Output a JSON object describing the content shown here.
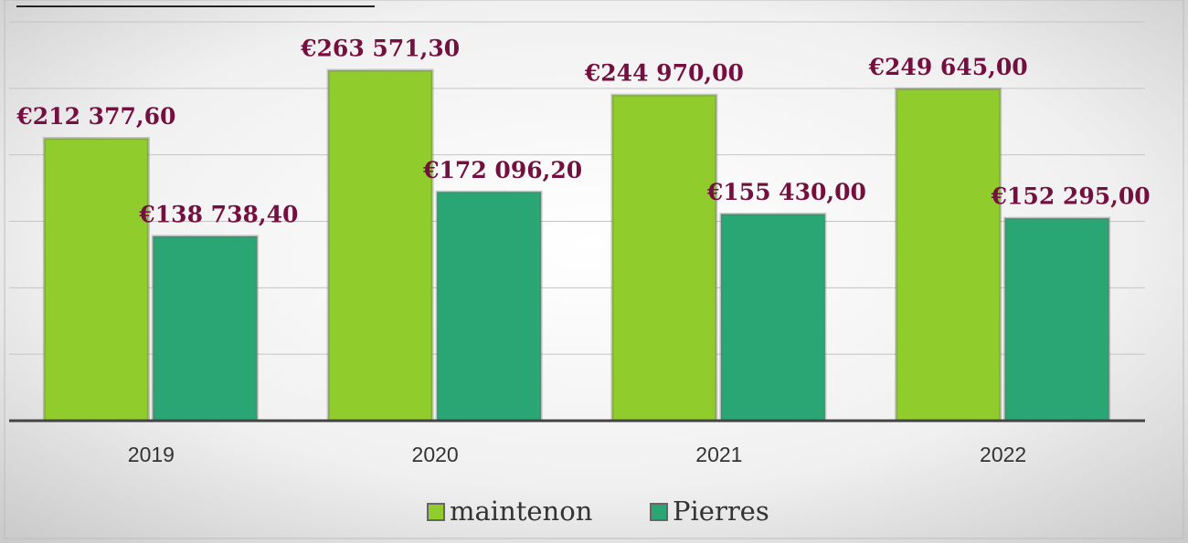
{
  "chart_data": {
    "type": "bar",
    "categories": [
      "2019",
      "2020",
      "2021",
      "2022"
    ],
    "series": [
      {
        "name": "maintenon",
        "color": "#8fcc2c",
        "values": [
          212377.6,
          263571.3,
          244970.0,
          249645.0
        ],
        "value_labels": [
          "€212 377,60",
          "€263 571,30",
          "€244 970,00",
          "€249 645,00"
        ]
      },
      {
        "name": "Pierres",
        "color": "#2aa574",
        "values": [
          138738.4,
          172096.2,
          155430.0,
          152295.0
        ],
        "value_labels": [
          "€138 738,40",
          "€172 096,20",
          "€155 430,00",
          "€152 295,00"
        ]
      }
    ],
    "ylim": [
      0,
      300000
    ],
    "yticks": [
      0,
      50000,
      100000,
      150000,
      200000,
      250000,
      300000
    ],
    "grid": true
  }
}
